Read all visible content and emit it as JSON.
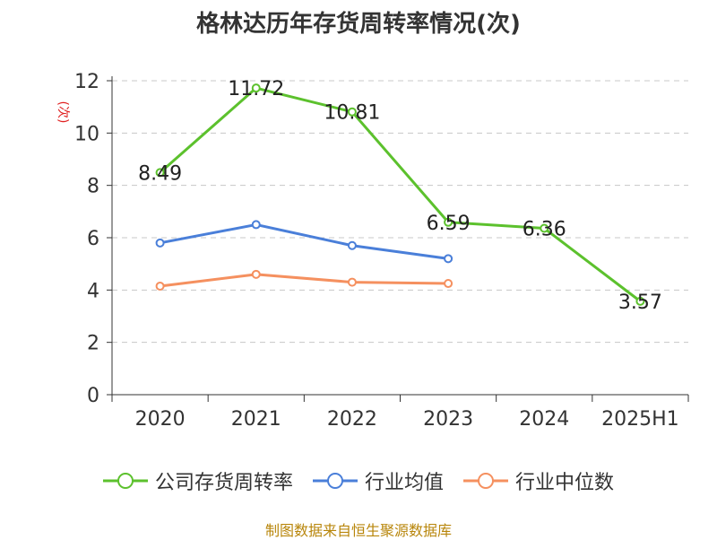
{
  "chart_data": {
    "type": "line",
    "title": "格林达历年存货周转率情况(次)",
    "ylabel": "(次)",
    "ylim": [
      0,
      12
    ],
    "yticks": [
      0,
      2,
      4,
      6,
      8,
      10,
      12
    ],
    "grid": true,
    "legend_position": "bottom",
    "categories": [
      "2020",
      "2021",
      "2022",
      "2023",
      "2024",
      "2025H1"
    ],
    "series": [
      {
        "name": "公司存货周转率",
        "color": "#5cc12d",
        "show_labels": true,
        "values": [
          8.49,
          11.72,
          10.81,
          6.59,
          6.36,
          3.57
        ],
        "labels": [
          "8.49",
          "11.72",
          "10.81",
          "6.59",
          "6.36",
          "3.57"
        ]
      },
      {
        "name": "行业均值",
        "color": "#4a7fd9",
        "show_labels": false,
        "values": [
          5.8,
          6.5,
          5.7,
          5.2,
          null,
          null
        ]
      },
      {
        "name": "行业中位数",
        "color": "#f5905f",
        "show_labels": false,
        "values": [
          4.15,
          4.6,
          4.3,
          4.25,
          null,
          null
        ]
      }
    ]
  },
  "footer": {
    "source": "制图数据来自恒生聚源数据库"
  }
}
